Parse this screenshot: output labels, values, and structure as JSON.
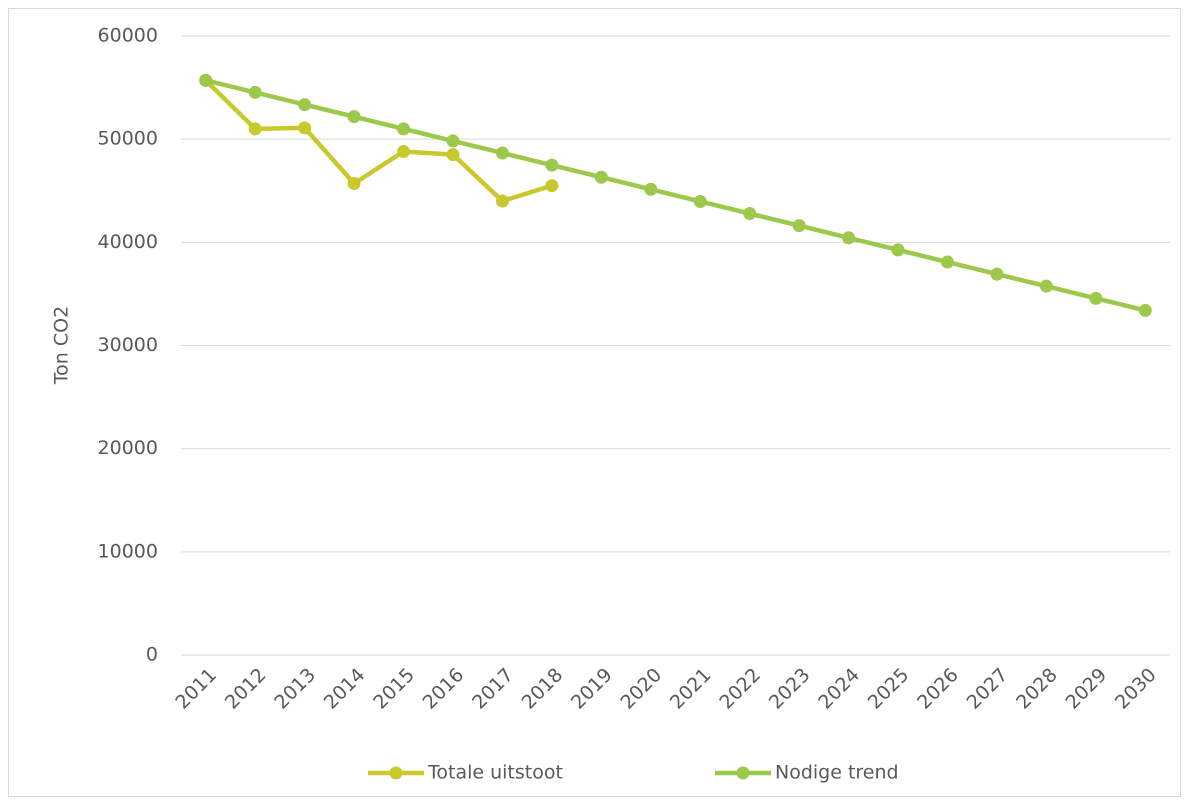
{
  "chart_data": {
    "type": "line",
    "y_label": "Ton CO2",
    "categories": [
      "2011",
      "2012",
      "2013",
      "2014",
      "2015",
      "2016",
      "2017",
      "2018",
      "2019",
      "2020",
      "2021",
      "2022",
      "2023",
      "2024",
      "2025",
      "2026",
      "2027",
      "2028",
      "2029",
      "2030"
    ],
    "series": [
      {
        "name": "Totale uitstoot",
        "color": "#c9c92e",
        "values": [
          55700,
          51000,
          51100,
          45700,
          48800,
          48500,
          44000,
          45500,
          null,
          null,
          null,
          null,
          null,
          null,
          null,
          null,
          null,
          null,
          null,
          null
        ]
      },
      {
        "name": "Nodige trend",
        "color": "#9cc84b",
        "values": [
          55700,
          54530,
          53350,
          52180,
          51000,
          49830,
          48660,
          47480,
          46310,
          45140,
          43960,
          42790,
          41620,
          40440,
          39270,
          38090,
          36920,
          35750,
          34570,
          33400
        ]
      }
    ],
    "ylim": [
      0,
      60000
    ],
    "yticks": [
      0,
      10000,
      20000,
      30000,
      40000,
      50000,
      60000
    ],
    "grid": true,
    "legend": "bottom"
  }
}
